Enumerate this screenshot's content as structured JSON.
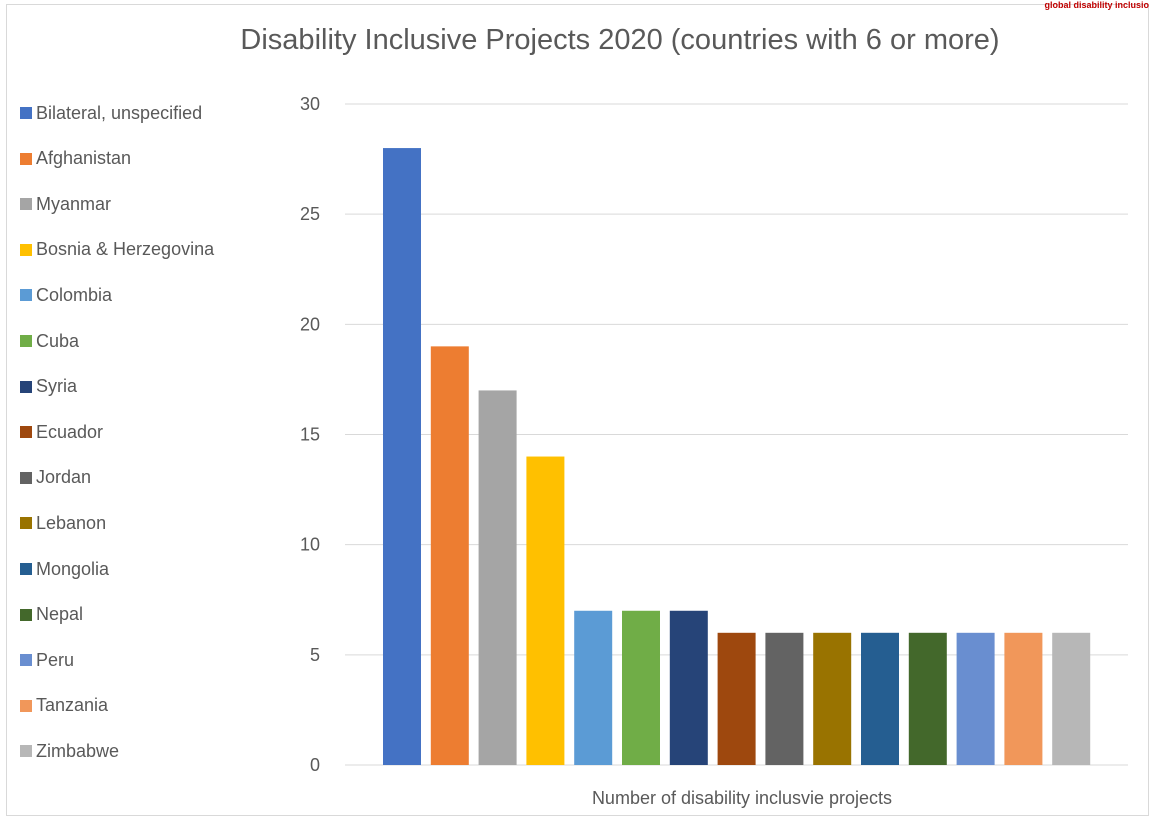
{
  "watermark": "global disability inclusio",
  "chart_data": {
    "type": "bar",
    "title": "Disability Inclusive Projects 2020 (countries with 6 or more)",
    "xlabel": "Number of disability inclusvie projects",
    "ylabel": "",
    "ylim": [
      0,
      30
    ],
    "yticks": [
      0,
      5,
      10,
      15,
      20,
      25,
      30
    ],
    "grid": true,
    "legend_position": "left",
    "series": [
      {
        "name": "Bilateral, unspecified",
        "value": 28,
        "color": "#4472C4"
      },
      {
        "name": "Afghanistan",
        "value": 19,
        "color": "#ED7D31"
      },
      {
        "name": "Myanmar",
        "value": 17,
        "color": "#A5A5A5"
      },
      {
        "name": "Bosnia & Herzegovina",
        "value": 14,
        "color": "#FFC000"
      },
      {
        "name": "Colombia",
        "value": 7,
        "color": "#5B9BD5"
      },
      {
        "name": "Cuba",
        "value": 7,
        "color": "#70AD47"
      },
      {
        "name": "Syria",
        "value": 7,
        "color": "#264478"
      },
      {
        "name": "Ecuador",
        "value": 6,
        "color": "#9E480E"
      },
      {
        "name": "Jordan",
        "value": 6,
        "color": "#636363"
      },
      {
        "name": "Lebanon",
        "value": 6,
        "color": "#997300"
      },
      {
        "name": "Mongolia",
        "value": 6,
        "color": "#255E91"
      },
      {
        "name": "Nepal",
        "value": 6,
        "color": "#43682B"
      },
      {
        "name": "Peru",
        "value": 6,
        "color": "#698ED0"
      },
      {
        "name": "Tanzania",
        "value": 6,
        "color": "#F1975A"
      },
      {
        "name": "Zimbabwe",
        "value": 6,
        "color": "#B7B7B7"
      }
    ]
  }
}
